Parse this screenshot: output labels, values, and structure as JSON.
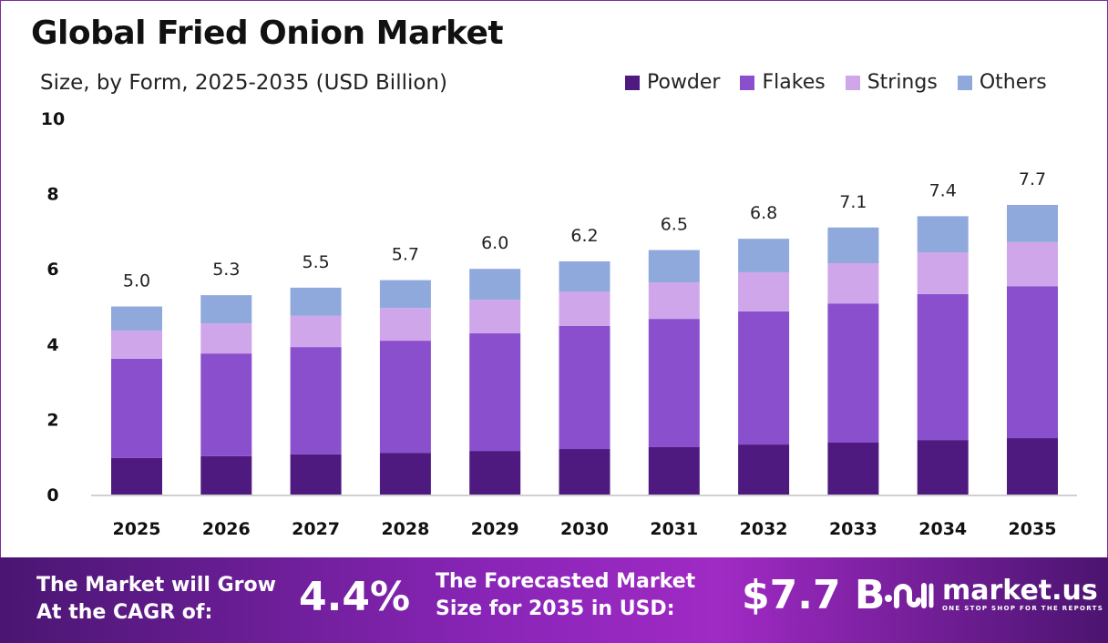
{
  "chart_data": {
    "type": "bar",
    "stacked": true,
    "title": "Global Fried Onion Market",
    "subtitle": "Size, by Form, 2025-2035 (USD Billion)",
    "categories": [
      "2025",
      "2026",
      "2027",
      "2028",
      "2029",
      "2030",
      "2031",
      "2032",
      "2033",
      "2034",
      "2035"
    ],
    "series": [
      {
        "name": "Powder",
        "color": "#4e1a80",
        "values": [
          0.97,
          1.02,
          1.07,
          1.11,
          1.16,
          1.21,
          1.26,
          1.33,
          1.38,
          1.45,
          1.5
        ]
      },
      {
        "name": "Flakes",
        "color": "#8a4fcc",
        "values": [
          2.64,
          2.73,
          2.85,
          2.98,
          3.13,
          3.27,
          3.41,
          3.54,
          3.7,
          3.88,
          4.04
        ]
      },
      {
        "name": "Strings",
        "color": "#d0a6ea",
        "values": [
          0.75,
          0.8,
          0.83,
          0.87,
          0.89,
          0.92,
          0.97,
          1.04,
          1.07,
          1.11,
          1.17
        ]
      },
      {
        "name": "Others",
        "color": "#8fa9dc",
        "values": [
          0.64,
          0.75,
          0.75,
          0.74,
          0.82,
          0.8,
          0.86,
          0.89,
          0.95,
          0.96,
          0.99
        ]
      }
    ],
    "totals": [
      "5.0",
      "5.3",
      "5.5",
      "5.7",
      "6.0",
      "6.2",
      "6.5",
      "6.8",
      "7.1",
      "7.4",
      "7.7"
    ],
    "yticks": [
      "0",
      "2",
      "4",
      "6",
      "8",
      "10"
    ],
    "ylim": [
      0,
      10
    ],
    "grid": false,
    "legend_placement": "top-right"
  },
  "footer": {
    "cagr_label_1": "The Market will Grow",
    "cagr_label_2": "At the CAGR of:",
    "cagr_value": "4.4%",
    "forecast_label_1": "The Forecasted Market",
    "forecast_label_2": "Size for 2035 in USD:",
    "forecast_value": "$7.7 B",
    "logo_name": "market.us",
    "logo_tagline": "ONE STOP SHOP FOR THE REPORTS"
  }
}
